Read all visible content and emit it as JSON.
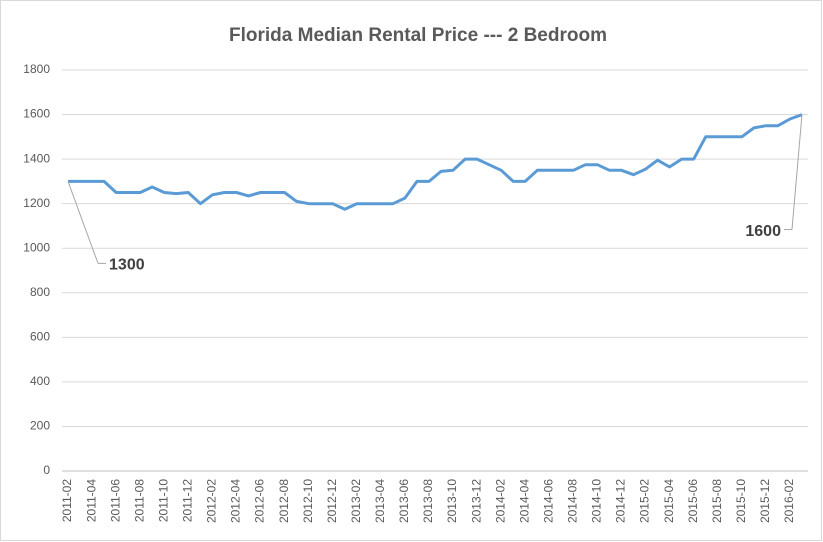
{
  "chart_data": {
    "type": "line",
    "title": "Florida Median Rental Price --- 2 Bedroom",
    "categories": [
      "2011-02",
      null,
      "2011-04",
      null,
      "2011-06",
      null,
      "2011-08",
      null,
      "2011-10",
      null,
      "2011-12",
      null,
      "2012-02",
      null,
      "2012-04",
      null,
      "2012-06",
      null,
      "2012-08",
      null,
      "2012-10",
      null,
      "2012-12",
      null,
      "2013-02",
      null,
      "2013-04",
      null,
      "2013-06",
      null,
      "2013-08",
      null,
      "2013-10",
      null,
      "2013-12",
      null,
      "2014-02",
      null,
      "2014-04",
      null,
      "2014-06",
      null,
      "2014-08",
      null,
      "2014-10",
      null,
      "2014-12",
      null,
      "2015-02",
      null,
      "2015-04",
      null,
      "2015-06",
      null,
      "2015-08",
      null,
      "2015-10",
      null,
      "2015-12",
      null,
      "2016-02",
      null
    ],
    "values": [
      1300,
      1300,
      1300,
      1300,
      1250,
      1250,
      1250,
      1275,
      1250,
      1245,
      1250,
      1200,
      1240,
      1250,
      1250,
      1235,
      1250,
      1250,
      1250,
      1210,
      1200,
      1200,
      1200,
      1175,
      1200,
      1200,
      1200,
      1200,
      1225,
      1300,
      1300,
      1345,
      1350,
      1400,
      1400,
      1375,
      1350,
      1300,
      1300,
      1350,
      1350,
      1350,
      1350,
      1375,
      1375,
      1350,
      1350,
      1330,
      1355,
      1395,
      1365,
      1400,
      1400,
      1500,
      1500,
      1500,
      1500,
      1540,
      1550,
      1550,
      1580,
      1600
    ],
    "value_labels": [
      "1300",
      null,
      null,
      null,
      null,
      null,
      null,
      null,
      null,
      null,
      null,
      null,
      null,
      null,
      null,
      null,
      null,
      null,
      null,
      null,
      null,
      null,
      null,
      null,
      null,
      null,
      null,
      null,
      null,
      null,
      null,
      null,
      null,
      null,
      null,
      null,
      null,
      null,
      null,
      null,
      null,
      null,
      null,
      null,
      null,
      null,
      null,
      null,
      null,
      null,
      null,
      null,
      null,
      null,
      null,
      null,
      null,
      null,
      null,
      null,
      null,
      "1600"
    ],
    "color": "#5b9bd5",
    "ylim": [
      0,
      1800
    ],
    "yticks": [
      0,
      200,
      400,
      600,
      800,
      1000,
      1200,
      1400,
      1600,
      1800
    ],
    "grid": true
  }
}
